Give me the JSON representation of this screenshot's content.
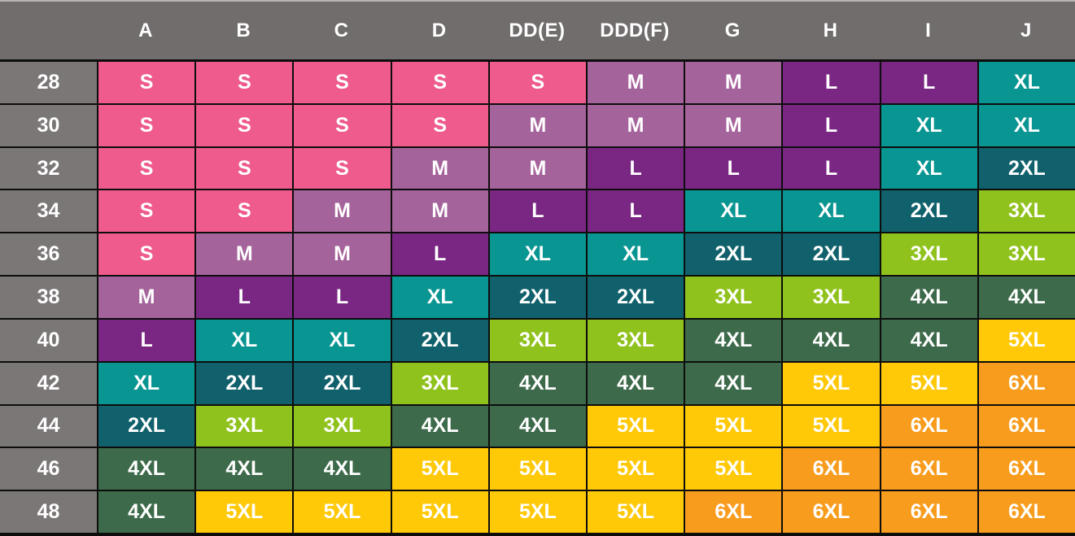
{
  "chart_data": {
    "type": "table",
    "title": "",
    "column_headers": [
      "A",
      "B",
      "C",
      "D",
      "DD(E)",
      "DDD(F)",
      "G",
      "H",
      "I",
      "J"
    ],
    "row_headers": [
      "28",
      "30",
      "32",
      "34",
      "36",
      "38",
      "40",
      "42",
      "44",
      "46",
      "48"
    ],
    "matrix": [
      [
        "S",
        "S",
        "S",
        "S",
        "S",
        "M",
        "M",
        "L",
        "L",
        "XL"
      ],
      [
        "S",
        "S",
        "S",
        "S",
        "M",
        "M",
        "M",
        "L",
        "XL",
        "XL"
      ],
      [
        "S",
        "S",
        "S",
        "M",
        "M",
        "L",
        "L",
        "L",
        "XL",
        "2XL"
      ],
      [
        "S",
        "S",
        "M",
        "M",
        "L",
        "L",
        "XL",
        "XL",
        "2XL",
        "3XL"
      ],
      [
        "S",
        "M",
        "M",
        "L",
        "XL",
        "XL",
        "2XL",
        "2XL",
        "3XL",
        "3XL"
      ],
      [
        "M",
        "L",
        "L",
        "XL",
        "2XL",
        "2XL",
        "3XL",
        "3XL",
        "4XL",
        "4XL"
      ],
      [
        "L",
        "XL",
        "XL",
        "2XL",
        "3XL",
        "3XL",
        "4XL",
        "4XL",
        "4XL",
        "5XL"
      ],
      [
        "XL",
        "2XL",
        "2XL",
        "3XL",
        "4XL",
        "4XL",
        "4XL",
        "5XL",
        "5XL",
        "6XL"
      ],
      [
        "2XL",
        "3XL",
        "3XL",
        "4XL",
        "4XL",
        "5XL",
        "5XL",
        "5XL",
        "6XL",
        "6XL"
      ],
      [
        "4XL",
        "4XL",
        "4XL",
        "5XL",
        "5XL",
        "5XL",
        "5XL",
        "6XL",
        "6XL",
        "6XL"
      ],
      [
        "4XL",
        "5XL",
        "5XL",
        "5XL",
        "5XL",
        "5XL",
        "6XL",
        "6XL",
        "6XL",
        "6XL"
      ]
    ],
    "size_colors": {
      "S": "#ee5b8c",
      "M": "#a5639b",
      "L": "#7a2783",
      "XL": "#099592",
      "2XL": "#11616c",
      "3XL": "#90c21d",
      "4XL": "#3d6a4a",
      "5XL": "#ffc908",
      "6XL": "#f89c1d"
    },
    "header_bg": "#716d6d",
    "row_label_bg": "#7b7777",
    "text_color": "#ffffff",
    "border_color": "#0d0d0d",
    "legend_position": "none",
    "grid": true
  }
}
